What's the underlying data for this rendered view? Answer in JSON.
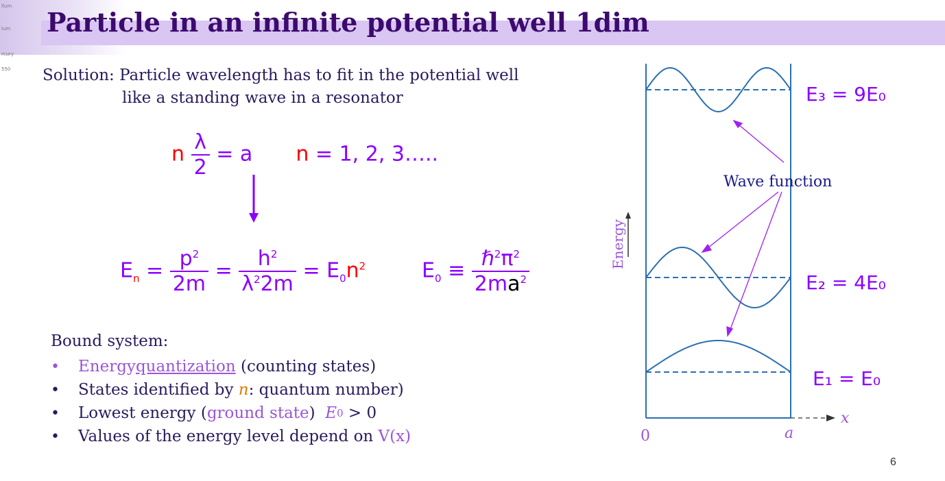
{
  "slide": {
    "title": "Particle in an infinite potential well 1dim",
    "page_number": "6",
    "header_deco": [
      "llum",
      "lum",
      "rcury",
      "550"
    ]
  },
  "solution": {
    "line1": "Solution: Particle wavelength has to fit in the potential well",
    "line2": "like a standing wave in a resonator"
  },
  "equations": {
    "standing_n": "n",
    "standing_num": "λ",
    "standing_den": "2",
    "standing_rhs": "= a",
    "standing_n2": "n",
    "standing_values": "= 1, 2, 3…..",
    "en_E": "E",
    "en_sub": "n",
    "en_eq1": "=",
    "en_f1_num": "p",
    "en_f1_num_sup": "2",
    "en_f1_den": "2m",
    "en_eq2": "=",
    "en_f2_num": "h",
    "en_f2_num_sup": "2",
    "en_f2_den_a": "λ",
    "en_f2_den_sup": "2",
    "en_f2_den_b": "2m",
    "en_eq3": "= E",
    "en_e0_sub": "0",
    "en_n": "n",
    "en_n_sup": "2",
    "e0_E": "E",
    "e0_sub": "0",
    "e0_equiv": "≡",
    "e0_num_a": "ℏ",
    "e0_num_sup1": "2",
    "e0_num_b": "π",
    "e0_num_sup2": "2",
    "e0_den_a": "2m",
    "e0_den_b": "a",
    "e0_den_sup": "2"
  },
  "bound": {
    "title": "Bound system:",
    "bullet": "•",
    "item1_a": "Energy ",
    "item1_link": "quantization",
    "item1_b": " (counting states)",
    "item2_a": "States identified by ",
    "item2_n": "n",
    "item2_b": ": quantum number)",
    "item3_a": "Lowest energy (",
    "item3_gs": "ground state",
    "item3_b": ")  ",
    "item3_e": "E",
    "item3_sub": "0",
    "item3_c": " > 0",
    "item4_a": "Values of the energy level depend on ",
    "item4_v": "V(x)"
  },
  "diagram": {
    "label_e3": "E₃ = 9E₀",
    "label_e2": "E₂ = 4E₀",
    "label_e1": "E₁ = E₀",
    "wave_label": "Wave function",
    "energy_axis": "Energy",
    "x_axis": "x",
    "origin": "0",
    "a_label": "a",
    "colors": {
      "wave": "#2a6fb0",
      "levels": "#2a6fb0",
      "label": "#8b00ff",
      "arrow": "#a020f0",
      "text": "#1a1a8c"
    }
  }
}
